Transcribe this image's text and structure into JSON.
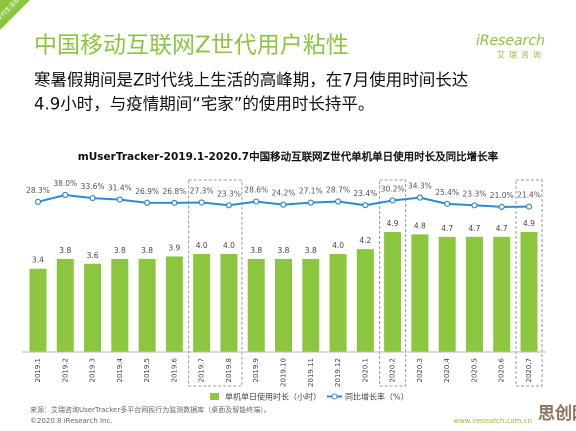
{
  "header": {
    "tag": "Z世代生活形态",
    "title": "中国移动互联网Z世代用户粘性",
    "logo": "iResearch",
    "logo_sub": "艾瑞咨询",
    "subtitle_lines": [
      "寒暑假期间是Z时代线上生活的高峰期，在7月使用时间长达",
      "4.9小时，与疫情期间“宅家”的使用时长持平。"
    ]
  },
  "chart_data": {
    "type": "bar",
    "title": "mUserTracker-2019.1-2020.7中国移动互联网Z世代单机单日使用时长及同比增长率",
    "categories": [
      "2019.1",
      "2019.2",
      "2019.3",
      "2019.4",
      "2019.5",
      "2019.6",
      "2019.7",
      "2019.8",
      "2019.9",
      "2019.10",
      "2019.11",
      "2019.12",
      "2020.1",
      "2020.2",
      "2020.3",
      "2020.4",
      "2020.5",
      "2020.6",
      "2020.7"
    ],
    "series": [
      {
        "name": "单机单日使用时长（小时）",
        "type": "bar",
        "color": "#8cc63f",
        "values": [
          3.4,
          3.8,
          3.6,
          3.8,
          3.8,
          3.9,
          4.0,
          4.0,
          3.8,
          3.8,
          3.8,
          4.0,
          4.2,
          4.9,
          4.8,
          4.7,
          4.7,
          4.7,
          4.9
        ],
        "value_labels": [
          "3.4",
          "3.8",
          "3.6",
          "3.8",
          "3.8",
          "3.9",
          "4.0",
          "4.0",
          "3.8",
          "3.8",
          "3.8",
          "4.0",
          "4.2",
          "4.9",
          "4.8",
          "4.7",
          "4.7",
          "4.7",
          "4.9"
        ]
      },
      {
        "name": "同比增长率（%）",
        "type": "line",
        "axis": "y2",
        "color": "#2e8bd0",
        "values": [
          28.3,
          38.0,
          33.6,
          31.4,
          26.9,
          26.8,
          27.3,
          23.3,
          28.6,
          24.2,
          27.1,
          28.7,
          23.4,
          30.2,
          34.3,
          25.4,
          23.3,
          21.0,
          21.4
        ],
        "value_labels": [
          "28.3%",
          "38.0%",
          "33.6%",
          "31.4%",
          "26.9%",
          "26.8%",
          "27.3%",
          "23.3%",
          "28.6%",
          "24.2%",
          "27.1%",
          "28.7%",
          "23.4%",
          "30.2%",
          "34.3%",
          "25.4%",
          "23.3%",
          "21.0%",
          "21.4%"
        ]
      }
    ]
  },
  "footer": {
    "source": "来源：艾瑞咨询UserTracker多平台网民行为监测数据库（桌面及智能终端）。",
    "copyright": "©2020.8 iResearch Inc.",
    "site": "www.iresearch.com.cn",
    "watermark": "思创网"
  }
}
